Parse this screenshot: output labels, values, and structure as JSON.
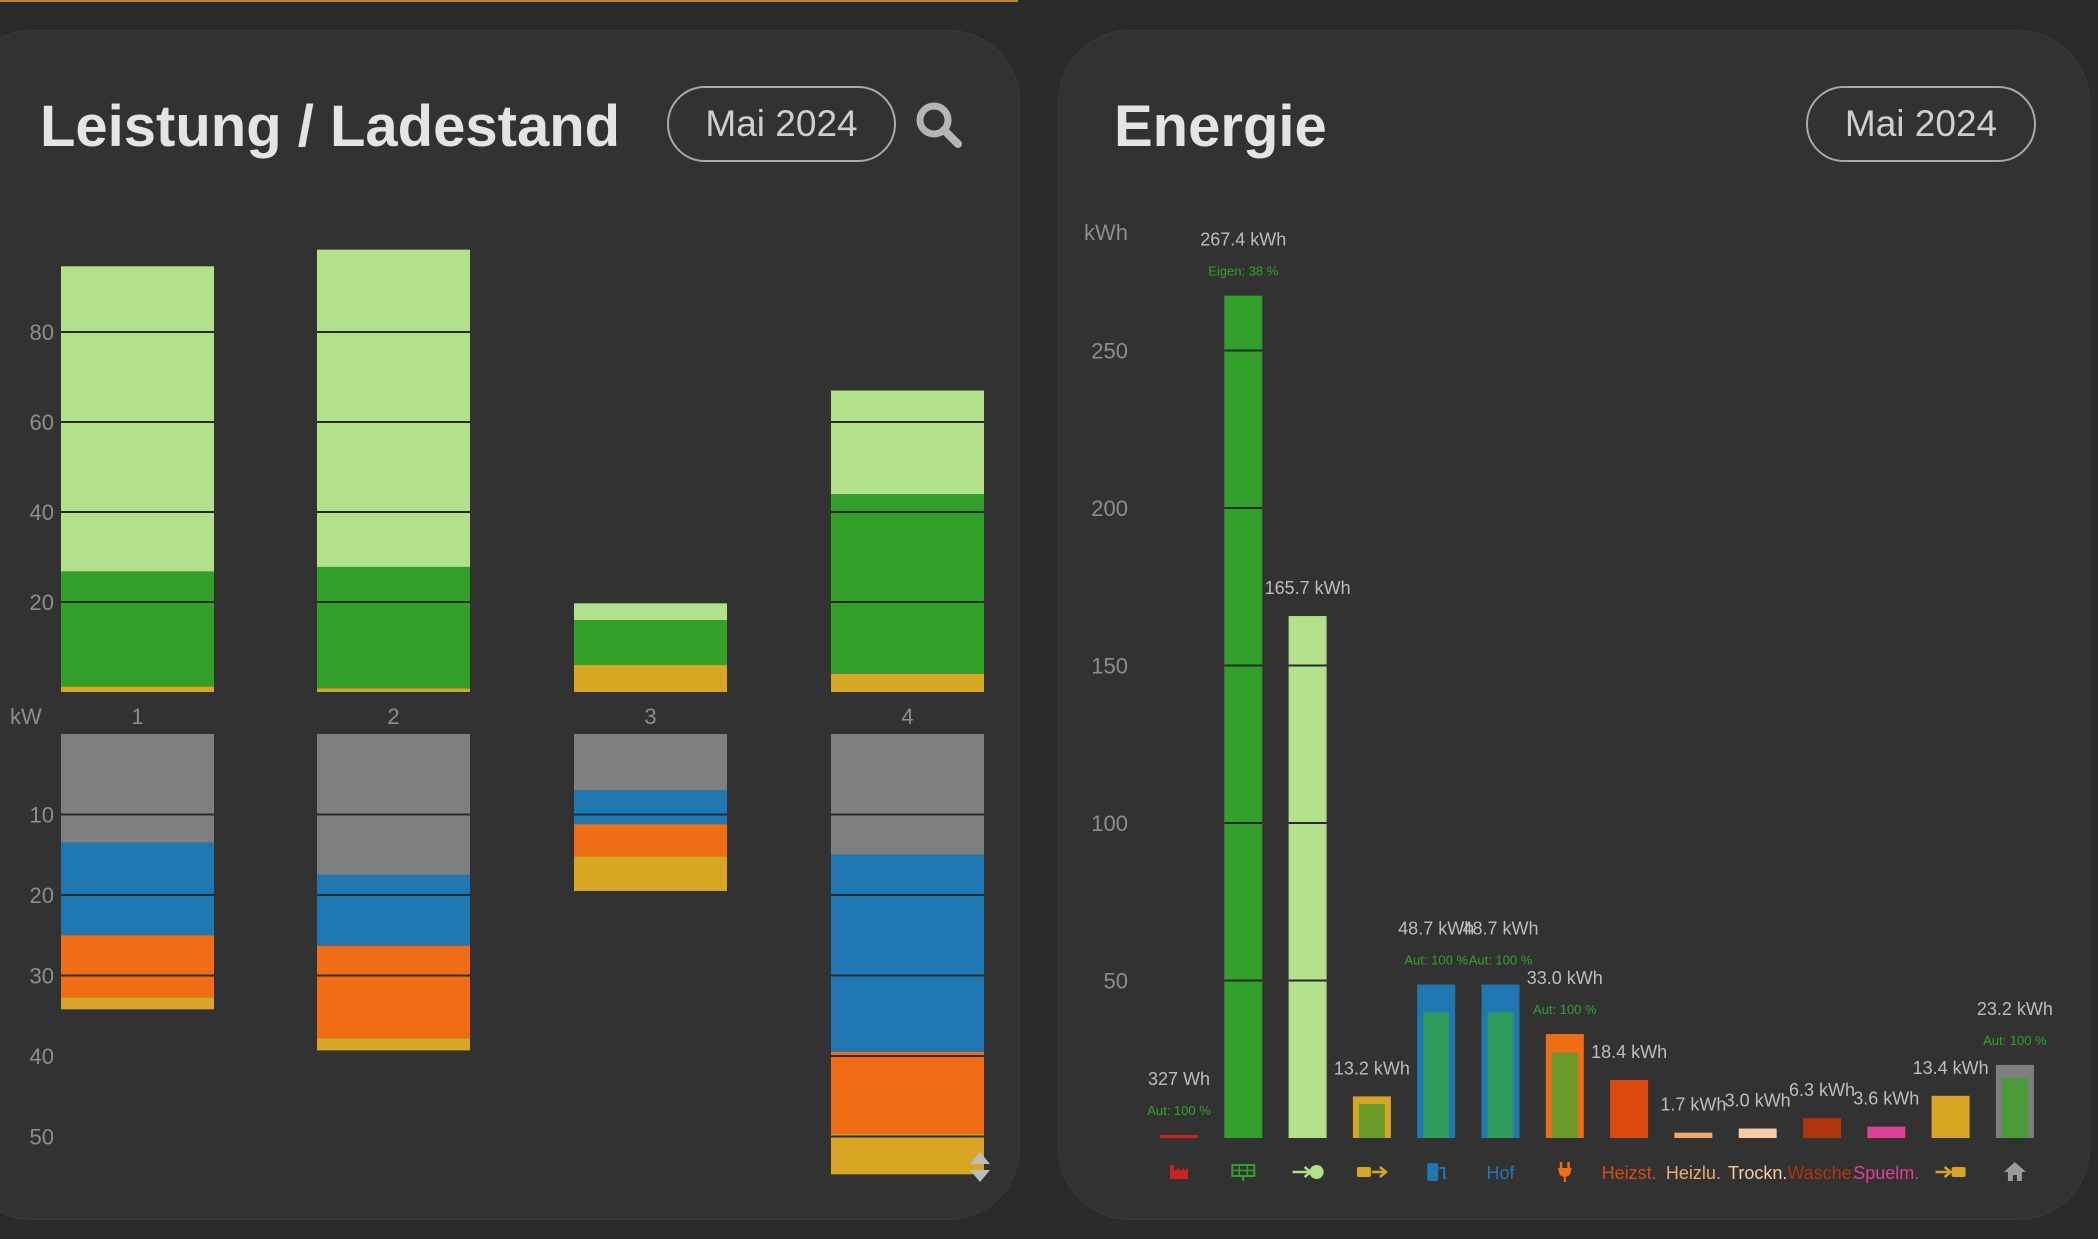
{
  "left_panel": {
    "title": "Leistung / Ladestand",
    "month_label": "Mai 2024",
    "search_icon": "search-icon",
    "scroll_icon": "up-down-arrows-icon"
  },
  "right_panel": {
    "title": "Energie",
    "month_label": "Mai 2024"
  },
  "colors": {
    "light_green": "#b3e08b",
    "dark_green": "#33a02c",
    "yellow": "#d9a623",
    "gray": "#7f7f7f",
    "blue": "#1f78b4",
    "orange": "#f06c15",
    "red_brick": "#cc2222",
    "heizst": "#dd4a10",
    "heizlu": "#f0a870",
    "trockn": "#f8cba4",
    "wasche": "#b0340e",
    "spuelm": "#e0409a",
    "home_gray": "#7f7f7f"
  },
  "chart_data": [
    {
      "type": "bar",
      "stacked": true,
      "title": "Leistung / Ladestand",
      "categories": [
        "1",
        "2",
        "3",
        "4"
      ],
      "upper": {
        "ylabel": "",
        "ylim": [
          0,
          100
        ],
        "ticks": [
          20,
          40,
          60,
          80
        ],
        "series": [
          {
            "color": "#d9a623",
            "values": [
              1.2,
              0.8,
              6,
              4
            ]
          },
          {
            "color": "#33a02c",
            "values": [
              25.6,
              27,
              10,
              40
            ]
          },
          {
            "color": "#b3e08b",
            "values": [
              67.8,
              70.5,
              3.7,
              23
            ]
          }
        ]
      },
      "lower": {
        "ylabel": "kW",
        "ylim": [
          0,
          55
        ],
        "ticks": [
          10,
          20,
          30,
          40,
          50
        ],
        "series": [
          {
            "color": "#7f7f7f",
            "values": [
              13.5,
              17.5,
              7,
              15
            ]
          },
          {
            "color": "#1f78b4",
            "values": [
              11.5,
              8.8,
              4.2,
              24.5
            ]
          },
          {
            "color": "#f06c15",
            "values": [
              7.7,
              11.5,
              4,
              10.2
            ]
          },
          {
            "color": "#d9a623",
            "values": [
              1.5,
              1.5,
              4.3,
              5
            ]
          }
        ]
      }
    },
    {
      "type": "bar",
      "title": "Energie",
      "ylabel": "kWh",
      "ylim": [
        0,
        280
      ],
      "ticks": [
        50,
        100,
        150,
        200,
        250
      ],
      "bars": [
        {
          "icon": "factory-icon",
          "label": "",
          "value_label": "327 Wh",
          "sub_label": "Aut: 100 %",
          "value": 0.33,
          "color": "#cc2222"
        },
        {
          "icon": "solar-panel-icon",
          "label": "",
          "value_label": "267.4 kWh",
          "sub_label": "Eigen: 38 %",
          "value": 267.4,
          "color": "#33a02c"
        },
        {
          "icon": "grid-export-icon",
          "label": "",
          "value_label": "165.7 kWh",
          "sub_label": "",
          "value": 165.7,
          "color": "#b3e08b"
        },
        {
          "icon": "battery-charge-icon",
          "label": "",
          "value_label": "13.2 kWh",
          "sub_label": "",
          "value": 13.2,
          "color": "#d9a623",
          "inner_color": "#6a9a2a"
        },
        {
          "icon": "ev-charger-icon",
          "label": "",
          "value_label": "48.7 kWh",
          "sub_label": "Aut: 100 %",
          "value": 48.7,
          "color": "#1f78b4",
          "inner_color": "#2e9a5c"
        },
        {
          "icon": "",
          "label": "Hof",
          "value_label": "48.7 kWh",
          "sub_label": "Aut: 100 %",
          "value": 48.7,
          "color": "#1f78b4",
          "inner_color": "#2e9a5c"
        },
        {
          "icon": "plug-icon",
          "label": "",
          "value_label": "33.0 kWh",
          "sub_label": "Aut: 100 %",
          "value": 33.0,
          "color": "#f06c15",
          "inner_color": "#6a9a2a"
        },
        {
          "icon": "",
          "label": "Heizst.",
          "value_label": "18.4 kWh",
          "sub_label": "",
          "value": 18.4,
          "color": "#dd4a10"
        },
        {
          "icon": "",
          "label": "Heizlu.",
          "value_label": "1.7 kWh",
          "sub_label": "",
          "value": 1.7,
          "color": "#f0a870"
        },
        {
          "icon": "",
          "label": "Trockn.",
          "value_label": "3.0 kWh",
          "sub_label": "",
          "value": 3.0,
          "color": "#f8cba4"
        },
        {
          "icon": "",
          "label": "Wasche.",
          "value_label": "6.3 kWh",
          "sub_label": "",
          "value": 6.3,
          "color": "#b0340e"
        },
        {
          "icon": "",
          "label": "Spuelm.",
          "value_label": "3.6 kWh",
          "sub_label": "",
          "value": 3.6,
          "color": "#e0409a"
        },
        {
          "icon": "battery-discharge-icon",
          "label": "",
          "value_label": "13.4 kWh",
          "sub_label": "",
          "value": 13.4,
          "color": "#d9a623"
        },
        {
          "icon": "home-icon",
          "label": "",
          "value_label": "23.2 kWh",
          "sub_label": "Aut: 100 %",
          "value": 23.2,
          "color": "#7f7f7f",
          "inner_color": "#4c9a3a"
        }
      ]
    }
  ]
}
